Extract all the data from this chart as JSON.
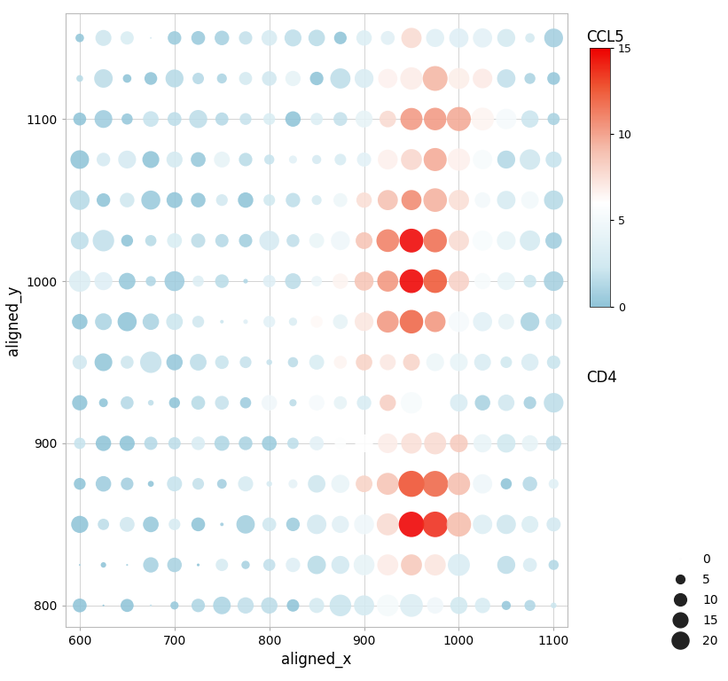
{
  "xlabel": "aligned_x",
  "ylabel": "aligned_y",
  "xlim": [
    585,
    1115
  ],
  "ylim": [
    787,
    1165
  ],
  "xticks": [
    600,
    700,
    800,
    900,
    1000,
    1100
  ],
  "yticks": [
    800,
    900,
    1000,
    1100
  ],
  "ccl5_label": "CCL5",
  "cd4_label": "CD4",
  "ccl5_vmin": 0,
  "ccl5_vmax": 15,
  "cd4_legend_values": [
    0,
    5,
    10,
    15,
    20
  ],
  "dot_size_scale": 22,
  "background_color": "#ffffff",
  "grid_color": "#cccccc",
  "colorbar_colors": [
    "#90c4d8",
    "#d0e8f0",
    "#ffffff",
    "#f5c0b0",
    "#ee5533",
    "#ee0000"
  ],
  "colorbar_positions": [
    0.0,
    0.15,
    0.4,
    0.6,
    0.85,
    1.0
  ]
}
